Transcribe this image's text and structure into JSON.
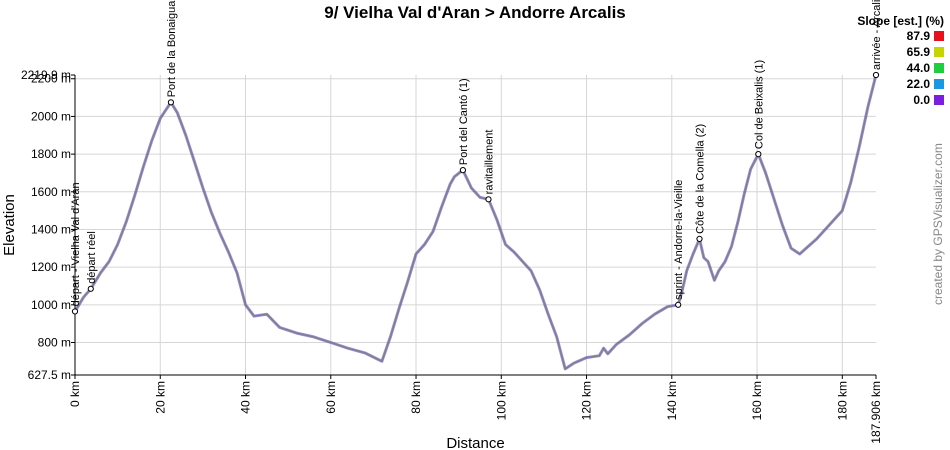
{
  "chart_data": {
    "type": "line",
    "title": "9/ Vielha Val d'Aran > Andorre Arcalis",
    "xlabel": "Distance",
    "ylabel": "Elevation",
    "xlim": [
      0,
      187.906
    ],
    "ylim": [
      627.5,
      2219.9
    ],
    "x_ticks": [
      {
        "value": 0,
        "label": "0 km"
      },
      {
        "value": 20,
        "label": "20 km"
      },
      {
        "value": 40,
        "label": "40 km"
      },
      {
        "value": 60,
        "label": "60 km"
      },
      {
        "value": 80,
        "label": "80 km"
      },
      {
        "value": 100,
        "label": "100 km"
      },
      {
        "value": 120,
        "label": "120 km"
      },
      {
        "value": 140,
        "label": "140 km"
      },
      {
        "value": 160,
        "label": "160 km"
      },
      {
        "value": 180,
        "label": "180 km"
      },
      {
        "value": 187.906,
        "label": "187.906 km"
      }
    ],
    "y_ticks": [
      {
        "value": 627.5,
        "label": "627.5 m"
      },
      {
        "value": 800,
        "label": "800 m"
      },
      {
        "value": 1000,
        "label": "1000 m"
      },
      {
        "value": 1200,
        "label": "1200 m"
      },
      {
        "value": 1400,
        "label": "1400 m"
      },
      {
        "value": 1600,
        "label": "1600 m"
      },
      {
        "value": 1800,
        "label": "1800 m"
      },
      {
        "value": 2000,
        "label": "2000 m"
      },
      {
        "value": 2200,
        "label": "2200 m"
      },
      {
        "value": 2219.9,
        "label": "2219.9 m"
      }
    ],
    "grid": true,
    "series": [
      {
        "color": "#808080",
        "x": [
          0,
          2,
          3.7,
          6,
          8,
          10,
          12,
          14,
          16,
          18,
          20,
          22.5,
          24,
          26,
          28,
          30,
          32,
          34,
          36,
          38,
          40,
          42,
          45,
          48,
          52,
          56,
          60,
          64,
          68,
          72,
          74,
          76,
          78,
          80,
          82,
          84,
          86,
          88,
          89,
          91,
          93,
          95,
          97,
          99,
          101,
          103,
          105,
          107,
          109,
          111,
          113,
          115,
          117,
          120,
          123,
          124,
          125,
          127,
          130,
          133,
          136,
          139,
          141.5,
          142.5,
          143.5,
          145,
          146.5,
          147.5,
          148.5,
          150,
          151,
          152.5,
          154,
          155.5,
          157,
          158.5,
          160.3,
          162,
          164,
          166,
          168,
          170,
          172,
          174,
          176,
          178,
          180,
          182,
          184,
          186,
          187.906
        ],
        "y": [
          965,
          1040,
          1085,
          1170,
          1230,
          1320,
          1440,
          1580,
          1730,
          1870,
          1990,
          2075,
          2020,
          1900,
          1760,
          1620,
          1490,
          1380,
          1280,
          1170,
          1000,
          940,
          950,
          880,
          850,
          830,
          800,
          770,
          745,
          700,
          830,
          980,
          1120,
          1270,
          1320,
          1390,
          1520,
          1640,
          1680,
          1715,
          1620,
          1570,
          1560,
          1450,
          1320,
          1280,
          1230,
          1180,
          1080,
          950,
          830,
          660,
          690,
          720,
          730,
          770,
          740,
          790,
          840,
          900,
          950,
          990,
          1000,
          1080,
          1180,
          1270,
          1350,
          1250,
          1230,
          1130,
          1180,
          1230,
          1310,
          1440,
          1590,
          1720,
          1800,
          1700,
          1560,
          1420,
          1300,
          1270,
          1310,
          1350,
          1400,
          1450,
          1500,
          1650,
          1840,
          2050,
          2220
        ]
      }
    ],
    "waypoints": [
      {
        "x": 0,
        "y": 965,
        "label": "départ - Vielha Val d'Aran"
      },
      {
        "x": 3.7,
        "y": 1085,
        "label": "départ réel"
      },
      {
        "x": 22.5,
        "y": 2075,
        "label": "Port de la Bonaigua"
      },
      {
        "x": 91,
        "y": 1715,
        "label": "Port del Cantó (1)"
      },
      {
        "x": 97,
        "y": 1560,
        "label": "ravitaillement"
      },
      {
        "x": 141.5,
        "y": 1000,
        "label": "sprint - Andorre-la-Vieille"
      },
      {
        "x": 146.5,
        "y": 1350,
        "label": "Côte de la Comella (2)"
      },
      {
        "x": 160.3,
        "y": 1800,
        "label": "Col de Beixalis (1)"
      },
      {
        "x": 187.906,
        "y": 2219.9,
        "label": "arrivée - Arcalis"
      }
    ],
    "slope_legend": {
      "title": "Slope [est.] (%)",
      "entries": [
        {
          "value": "87.9",
          "color": "#e8101a"
        },
        {
          "value": "65.9",
          "color": "#c8d400"
        },
        {
          "value": "44.0",
          "color": "#1fce3c"
        },
        {
          "value": "22.0",
          "color": "#1898e0"
        },
        {
          "value": "0.0",
          "color": "#7a1ee0"
        }
      ]
    }
  },
  "watermark": "created by GPSVisualizer.com"
}
